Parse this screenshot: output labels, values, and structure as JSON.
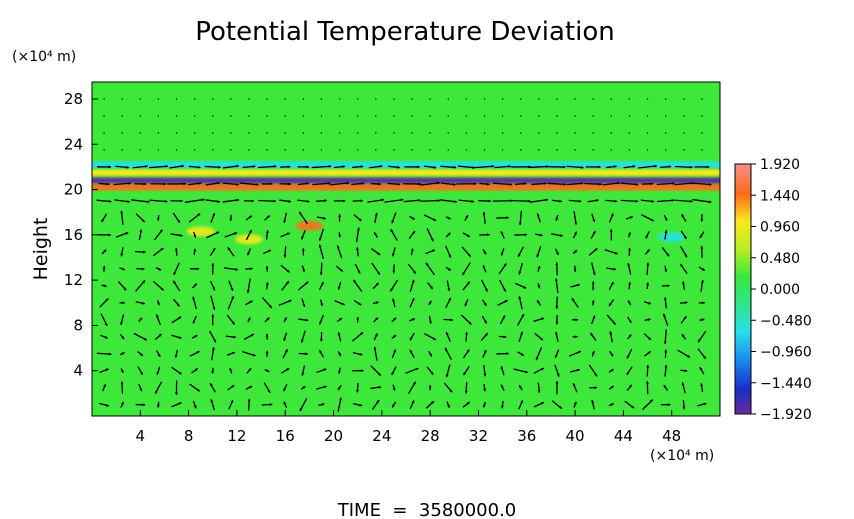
{
  "chart_data": {
    "type": "heatmap",
    "title": "Potential Temperature Deviation",
    "ylabel": "Height",
    "y_unit_label": "(×10⁴ m)",
    "x_unit_label": "(×10⁴ m)",
    "xlim": [
      0,
      52
    ],
    "ylim": [
      0,
      29.5
    ],
    "x_ticks": [
      4,
      8,
      12,
      16,
      20,
      24,
      28,
      32,
      36,
      40,
      44,
      48
    ],
    "y_ticks": [
      4,
      8,
      12,
      16,
      20,
      24,
      28
    ],
    "colorbar": {
      "ticks": [
        1.92,
        1.44,
        0.96,
        0.48,
        0.0,
        -0.48,
        -0.96,
        -1.44,
        -1.92
      ],
      "tick_labels": [
        "1.920",
        "1.440",
        "0.960",
        "0.480",
        "0.000",
        "−0.480",
        "−0.960",
        "−1.440",
        "−1.920"
      ],
      "range": [
        -1.92,
        1.92
      ]
    },
    "field_features": [
      {
        "kind": "band",
        "y": 20.2,
        "value": 1.6,
        "note": "strong positive stripe"
      },
      {
        "kind": "band",
        "y": 20.8,
        "value": -1.8,
        "note": "strong negative stripe"
      },
      {
        "kind": "band",
        "y": 21.5,
        "value": 0.9,
        "note": "positive stripe"
      },
      {
        "kind": "band",
        "y": 22.2,
        "value": -0.6,
        "note": "weak negative stripe"
      },
      {
        "kind": "blob",
        "x": 18,
        "y": 16.8,
        "value": 1.6
      },
      {
        "kind": "blob",
        "x": 9,
        "y": 16.3,
        "value": 1.0
      },
      {
        "kind": "blob",
        "x": 13,
        "y": 15.6,
        "value": 0.9
      },
      {
        "kind": "blob",
        "x": 30,
        "y": 26.0,
        "value": 0.3
      },
      {
        "kind": "blob",
        "x": 48,
        "y": 15.8,
        "value": -0.5
      }
    ],
    "vector_field": {
      "x_spacing": 1.5,
      "y_spacing": 1.5,
      "note": "wind vectors overlaid on the field"
    },
    "footer": "TIME  =  3580000.0"
  }
}
